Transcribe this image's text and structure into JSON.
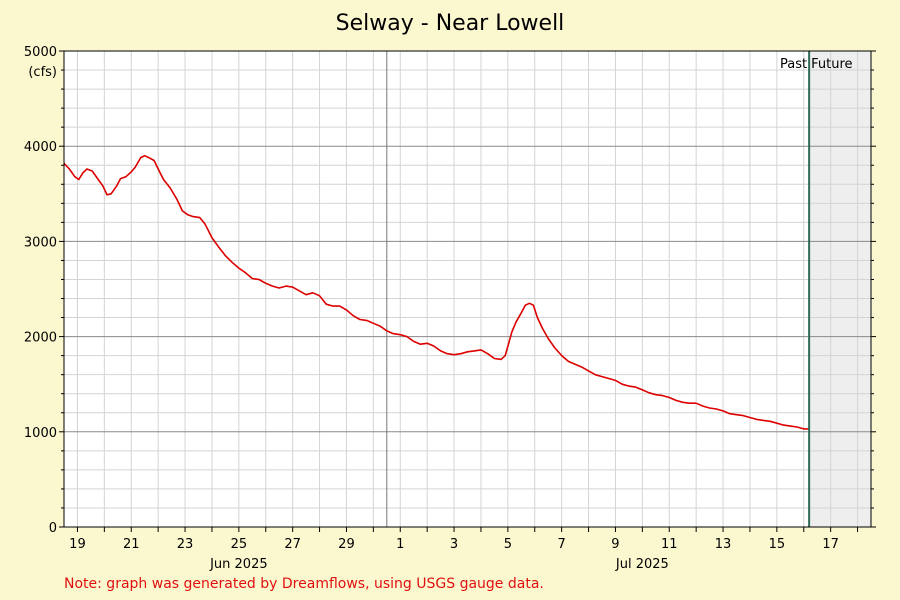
{
  "title": "Selway - Near Lowell",
  "note": "Note: graph was generated by Dreamflows, using USGS gauge data.",
  "colors": {
    "background": "#fbf8d0",
    "plot_bg": "#ffffff",
    "line": "#dd0000",
    "now_line": "#2e6b55",
    "future_bg": "#eeeeee",
    "label_red": "#e01010"
  },
  "chart_data": {
    "type": "line",
    "title": "Selway - Near Lowell",
    "ylabel": "(cfs)",
    "ylim": [
      0,
      5000
    ],
    "xlim": [
      -0.5,
      29.5
    ],
    "grid": true,
    "y_ticks": [
      "0",
      "1000",
      "2000",
      "3000",
      "4000",
      "5000"
    ],
    "x_tick_labels": [
      {
        "day": 0,
        "label": "19"
      },
      {
        "day": 2,
        "label": "21"
      },
      {
        "day": 4,
        "label": "23"
      },
      {
        "day": 6,
        "label": "25"
      },
      {
        "day": 8,
        "label": "27"
      },
      {
        "day": 10,
        "label": "29"
      },
      {
        "day": 12,
        "label": "1"
      },
      {
        "day": 14,
        "label": "3"
      },
      {
        "day": 16,
        "label": "5"
      },
      {
        "day": 18,
        "label": "7"
      },
      {
        "day": 20,
        "label": "9"
      },
      {
        "day": 22,
        "label": "11"
      },
      {
        "day": 24,
        "label": "13"
      },
      {
        "day": 26,
        "label": "15"
      },
      {
        "day": 28,
        "label": "17"
      }
    ],
    "month_labels": [
      {
        "day": 6,
        "label": "Jun 2025"
      },
      {
        "day": 21,
        "label": "Jul 2025"
      }
    ],
    "month_boundary_day": 11.5,
    "now_day": 27.2,
    "past_label": "Past",
    "future_label": "Future",
    "series": [
      {
        "points": [
          [
            -0.5,
            3820
          ],
          [
            -0.3,
            3760
          ],
          [
            -0.1,
            3680
          ],
          [
            0.05,
            3650
          ],
          [
            0.2,
            3720
          ],
          [
            0.35,
            3760
          ],
          [
            0.55,
            3740
          ],
          [
            0.75,
            3660
          ],
          [
            0.95,
            3580
          ],
          [
            1.1,
            3490
          ],
          [
            1.25,
            3500
          ],
          [
            1.45,
            3580
          ],
          [
            1.6,
            3660
          ],
          [
            1.8,
            3680
          ],
          [
            2.0,
            3730
          ],
          [
            2.15,
            3780
          ],
          [
            2.35,
            3880
          ],
          [
            2.5,
            3900
          ],
          [
            2.65,
            3880
          ],
          [
            2.85,
            3850
          ],
          [
            3.0,
            3760
          ],
          [
            3.2,
            3650
          ],
          [
            3.45,
            3560
          ],
          [
            3.7,
            3440
          ],
          [
            3.9,
            3320
          ],
          [
            4.1,
            3280
          ],
          [
            4.3,
            3260
          ],
          [
            4.55,
            3250
          ],
          [
            4.75,
            3180
          ],
          [
            5.0,
            3040
          ],
          [
            5.25,
            2940
          ],
          [
            5.5,
            2850
          ],
          [
            5.75,
            2780
          ],
          [
            6.0,
            2720
          ],
          [
            6.25,
            2670
          ],
          [
            6.5,
            2610
          ],
          [
            6.75,
            2600
          ],
          [
            7.0,
            2560
          ],
          [
            7.25,
            2530
          ],
          [
            7.5,
            2510
          ],
          [
            7.75,
            2530
          ],
          [
            8.0,
            2520
          ],
          [
            8.25,
            2480
          ],
          [
            8.5,
            2440
          ],
          [
            8.75,
            2460
          ],
          [
            9.0,
            2430
          ],
          [
            9.25,
            2340
          ],
          [
            9.5,
            2320
          ],
          [
            9.75,
            2320
          ],
          [
            10.0,
            2280
          ],
          [
            10.25,
            2220
          ],
          [
            10.5,
            2180
          ],
          [
            10.75,
            2170
          ],
          [
            11.0,
            2140
          ],
          [
            11.25,
            2110
          ],
          [
            11.5,
            2060
          ],
          [
            11.75,
            2030
          ],
          [
            12.0,
            2020
          ],
          [
            12.25,
            2000
          ],
          [
            12.5,
            1950
          ],
          [
            12.75,
            1920
          ],
          [
            13.0,
            1930
          ],
          [
            13.25,
            1900
          ],
          [
            13.5,
            1850
          ],
          [
            13.75,
            1820
          ],
          [
            14.0,
            1810
          ],
          [
            14.25,
            1820
          ],
          [
            14.5,
            1840
          ],
          [
            14.75,
            1850
          ],
          [
            15.0,
            1860
          ],
          [
            15.25,
            1820
          ],
          [
            15.5,
            1770
          ],
          [
            15.75,
            1760
          ],
          [
            15.9,
            1800
          ],
          [
            16.0,
            1900
          ],
          [
            16.15,
            2050
          ],
          [
            16.3,
            2150
          ],
          [
            16.5,
            2250
          ],
          [
            16.65,
            2330
          ],
          [
            16.8,
            2350
          ],
          [
            16.95,
            2330
          ],
          [
            17.1,
            2200
          ],
          [
            17.3,
            2080
          ],
          [
            17.5,
            1980
          ],
          [
            17.75,
            1880
          ],
          [
            18.0,
            1800
          ],
          [
            18.25,
            1740
          ],
          [
            18.5,
            1710
          ],
          [
            18.75,
            1680
          ],
          [
            19.0,
            1640
          ],
          [
            19.25,
            1600
          ],
          [
            19.5,
            1580
          ],
          [
            19.75,
            1560
          ],
          [
            20.0,
            1540
          ],
          [
            20.25,
            1500
          ],
          [
            20.5,
            1480
          ],
          [
            20.75,
            1470
          ],
          [
            21.0,
            1440
          ],
          [
            21.25,
            1410
          ],
          [
            21.5,
            1390
          ],
          [
            21.75,
            1380
          ],
          [
            22.0,
            1360
          ],
          [
            22.25,
            1330
          ],
          [
            22.5,
            1310
          ],
          [
            22.75,
            1300
          ],
          [
            23.0,
            1300
          ],
          [
            23.25,
            1270
          ],
          [
            23.5,
            1250
          ],
          [
            23.75,
            1240
          ],
          [
            24.0,
            1220
          ],
          [
            24.25,
            1190
          ],
          [
            24.5,
            1180
          ],
          [
            24.75,
            1170
          ],
          [
            25.0,
            1150
          ],
          [
            25.25,
            1130
          ],
          [
            25.5,
            1120
          ],
          [
            25.75,
            1110
          ],
          [
            26.0,
            1090
          ],
          [
            26.25,
            1070
          ],
          [
            26.5,
            1060
          ],
          [
            26.75,
            1050
          ],
          [
            27.0,
            1030
          ],
          [
            27.2,
            1030
          ]
        ]
      }
    ]
  }
}
